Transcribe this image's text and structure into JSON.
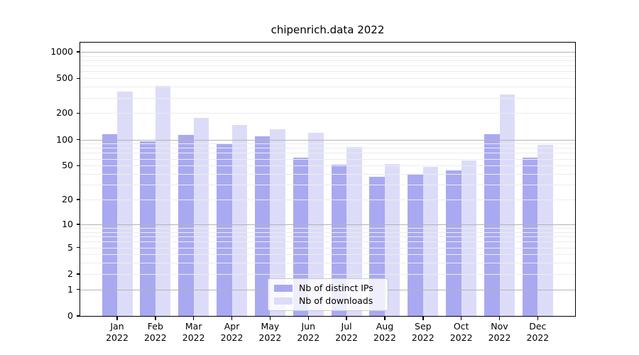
{
  "chart_data": {
    "type": "bar",
    "title": "chipenrich.data 2022",
    "categories": [
      "Jan 2022",
      "Feb 2022",
      "Mar 2022",
      "Apr 2022",
      "May 2022",
      "Jun 2022",
      "Jul 2022",
      "Aug 2022",
      "Sep 2022",
      "Oct 2022",
      "Nov 2022",
      "Dec 2022"
    ],
    "series": [
      {
        "name": "Nb of distinct IPs",
        "color": "#a9a9f1",
        "values": [
          115,
          96,
          113,
          89,
          108,
          62,
          51,
          37,
          40,
          44,
          115,
          62
        ]
      },
      {
        "name": "Nb of downloads",
        "color": "#dcdcf9",
        "values": [
          355,
          410,
          178,
          148,
          130,
          120,
          82,
          52,
          48,
          57,
          330,
          87
        ]
      }
    ],
    "xlabel": "",
    "ylabel": "",
    "y_scale": "log1p",
    "y_ticks": [
      0,
      1,
      2,
      5,
      10,
      20,
      50,
      100,
      200,
      500,
      1000
    ],
    "ylim": [
      0,
      1280
    ],
    "grid": "horizontal major+minor",
    "legend_position": "lower center inside plot"
  },
  "colors": {
    "bar_ips": "#a9a9f1",
    "bar_downloads": "#dcdcf9",
    "grid_major": "#b3b3b3",
    "grid_minor": "#ececec",
    "spine": "#000000",
    "background": "#ffffff"
  }
}
